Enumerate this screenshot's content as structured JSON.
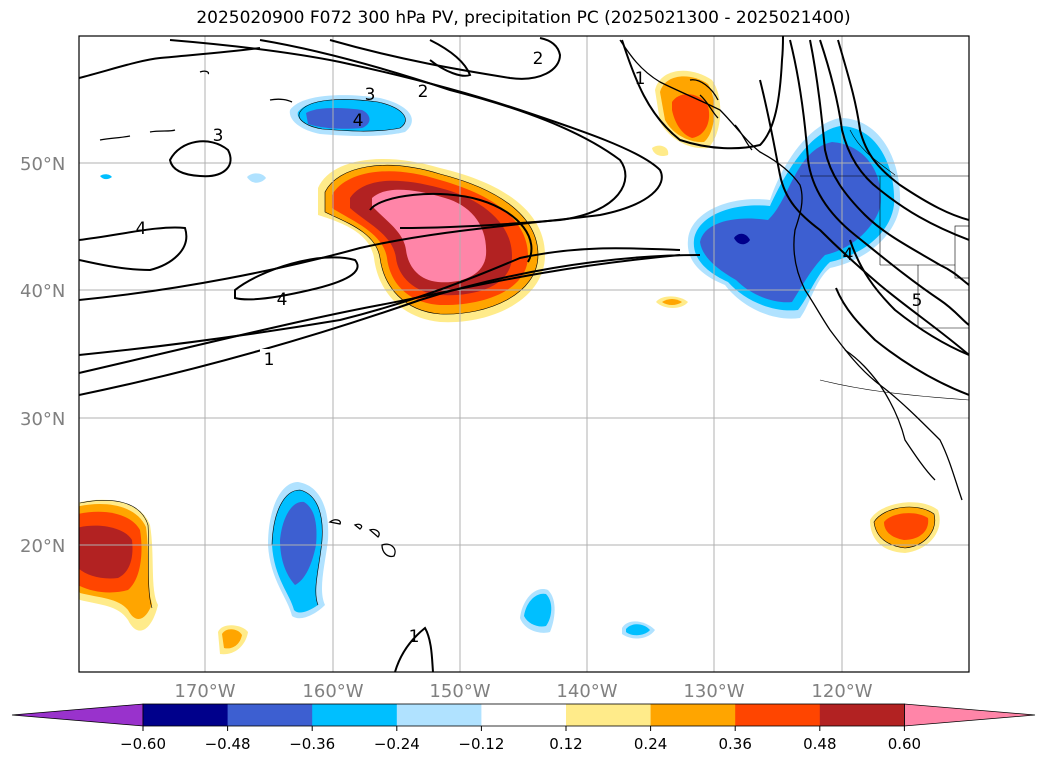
{
  "title": "2025020900 F072 300 hPa PV, precipitation PC (2025021300 - 2025021400)",
  "map": {
    "lon_labels": [
      "170°W",
      "160°W",
      "150°W",
      "140°W",
      "130°W",
      "120°W"
    ],
    "lat_labels": [
      "50°N",
      "40°N",
      "30°N",
      "20°N"
    ],
    "contour_labels": [
      "1",
      "1",
      "1",
      "2",
      "2",
      "3",
      "3",
      "4",
      "4",
      "4",
      "4",
      "5"
    ]
  },
  "colorbar": {
    "ticks": [
      "−0.60",
      "−0.48",
      "−0.36",
      "−0.24",
      "−0.12",
      "0.12",
      "0.24",
      "0.36",
      "0.48",
      "0.60"
    ],
    "colors": [
      "#9932cc",
      "#00008b",
      "#3d5fd1",
      "#00bfff",
      "#b0e2ff",
      "#ffffff",
      "#ffeb8a",
      "#ffa500",
      "#ff4500",
      "#b22222",
      "#ff85a8"
    ]
  }
}
